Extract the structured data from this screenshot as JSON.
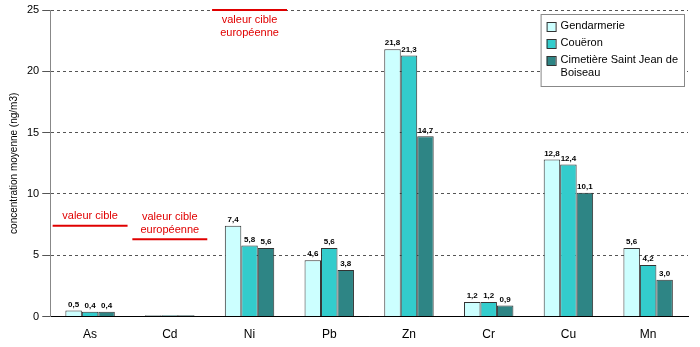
{
  "chart_data": {
    "type": "bar",
    "y_label": "concentration moyenne (ng/m3)",
    "categories": [
      "As",
      "Cd",
      "Ni",
      "Pb",
      "Zn",
      "Cr",
      "Cu",
      "Mn"
    ],
    "series": [
      {
        "name": "Gendarmerie",
        "color": "#ccffff",
        "values": [
          0.5,
          0.1,
          7.4,
          4.6,
          21.8,
          1.2,
          12.8,
          5.6
        ],
        "value_labels": [
          "0,5",
          null,
          "7,4",
          "4,6",
          "21,8",
          "1,2",
          "12,8",
          "5,6"
        ]
      },
      {
        "name": "Couëron",
        "color": "#33cccc",
        "values": [
          0.4,
          0.1,
          5.8,
          5.6,
          21.3,
          1.2,
          12.4,
          4.2
        ],
        "value_labels": [
          "0,4",
          null,
          "5,8",
          "5,6",
          "21,3",
          "1,2",
          "12,4",
          "4,2"
        ]
      },
      {
        "name": "Cimetière Saint Jean de Boiseau",
        "color": "#2e8585",
        "values": [
          0.4,
          0.1,
          5.6,
          3.8,
          14.7,
          0.9,
          10.1,
          3.0
        ],
        "value_labels": [
          "0,4",
          null,
          "5,6",
          "3,8",
          "14,7",
          "0,9",
          "10,1",
          "3,0"
        ]
      }
    ],
    "ylim": [
      0,
      25
    ],
    "yticks": [
      0,
      5,
      10,
      15,
      20,
      25
    ],
    "grid": true,
    "legend": "top right",
    "data_labels": true,
    "annotations": [
      {
        "text": "valeur cible",
        "category": "As",
        "value": 7.4
      },
      {
        "text": "valeur cible européenne",
        "category": "Cd",
        "value": 6.3
      },
      {
        "text": "valeur cible européenne",
        "category": "Ni",
        "value": 25
      }
    ]
  }
}
